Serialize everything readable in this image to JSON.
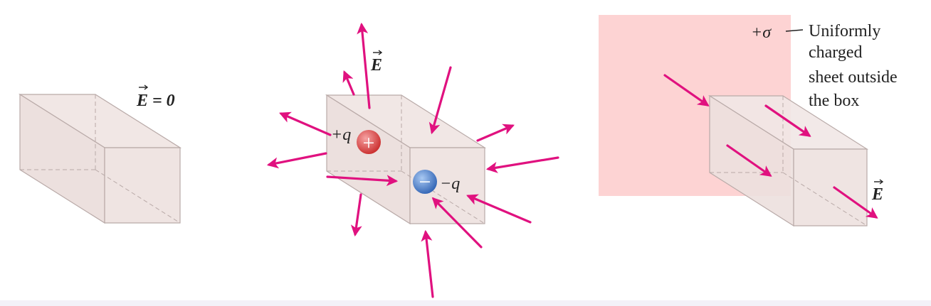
{
  "panel1": {
    "field_label": "E = 0"
  },
  "panel2": {
    "field_label": "E",
    "positive_charge_label": "+q",
    "negative_charge_label": "−q",
    "positive_sign": "+",
    "negative_sign": "−"
  },
  "panel3": {
    "sheet_label": "+σ",
    "caption_lines": [
      "Uniformly",
      "charged",
      "sheet outside",
      "the box"
    ],
    "field_label": "E"
  },
  "colors": {
    "arrow": "#e0117f",
    "box_fill": "#efe4e2",
    "box_edge": "#b9aaa8",
    "sheet": "#fdd3d3",
    "positive_charge": "#d83a3a",
    "negative_charge": "#3f78c8"
  }
}
